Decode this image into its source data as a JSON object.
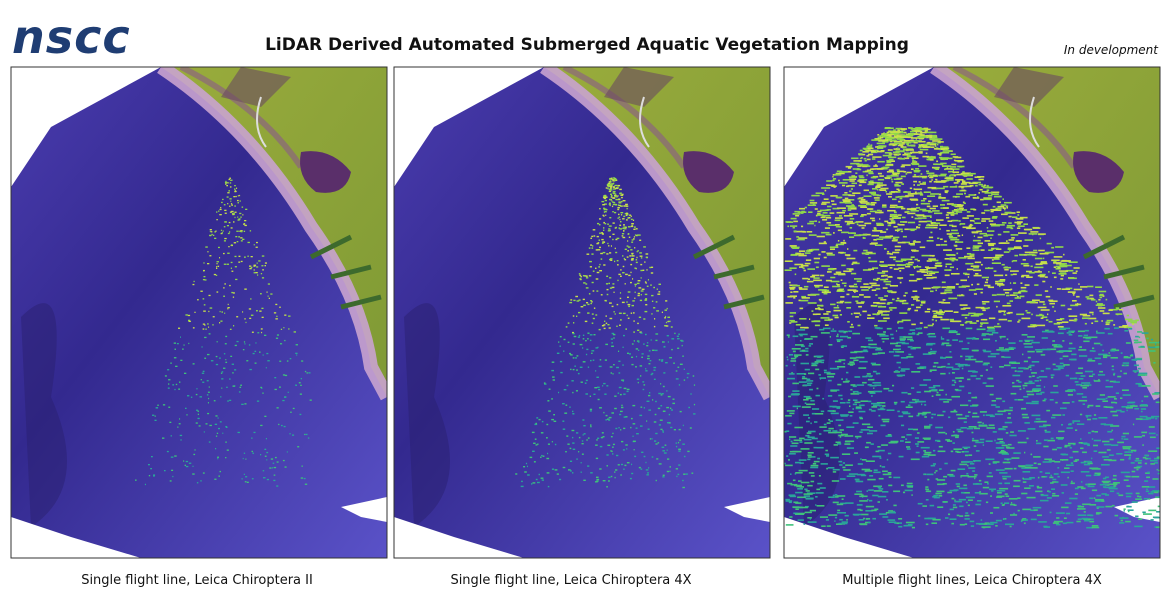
{
  "header": {
    "logo": "nscc",
    "title": "LiDAR Derived Automated Submerged Aquatic Vegetation Mapping",
    "status": "In development"
  },
  "panels": [
    {
      "caption": "Single flight line, Leica Chiroptera II"
    },
    {
      "caption": "Single flight line, Leica Chiroptera 4X"
    },
    {
      "caption": "Multiple flight lines, Leica Chiroptera 4X"
    }
  ]
}
